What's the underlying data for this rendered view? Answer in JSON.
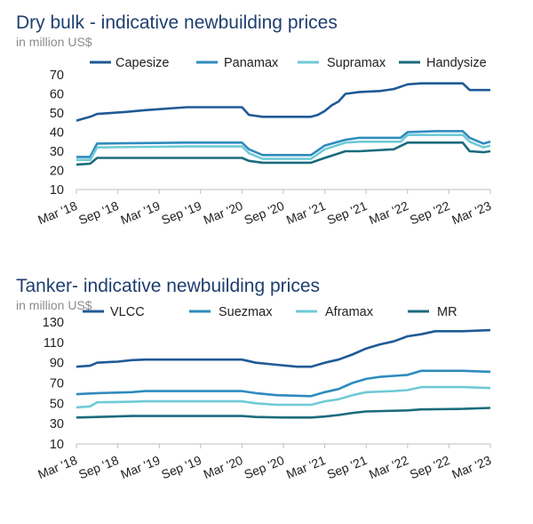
{
  "chart_data": [
    {
      "id": "dry",
      "type": "line",
      "title": "Dry bulk  - indicative  newbuilding  prices",
      "subtitle": "in million US$",
      "yticks": [
        10,
        20,
        30,
        40,
        50,
        60,
        70
      ],
      "ylim": [
        10,
        70
      ],
      "xticks": [
        "Mar '18",
        "Sep '18",
        "Mar '19",
        "Sep '19",
        "Mar '20",
        "Sep '20",
        "Mar '21",
        "Sep '21",
        "Mar '22",
        "Sep '22",
        "Mar '23"
      ],
      "xlim": [
        0,
        60
      ],
      "grid": false,
      "legend": "top",
      "series": [
        {
          "name": "Capesize",
          "color": "#1f5a96",
          "points": [
            [
              0,
              46
            ],
            [
              1,
              47
            ],
            [
              2,
              48
            ],
            [
              3,
              49.5
            ],
            [
              7,
              50.5
            ],
            [
              10,
              51.5
            ],
            [
              16,
              53
            ],
            [
              24,
              53
            ],
            [
              25,
              49
            ],
            [
              27,
              48
            ],
            [
              34,
              48
            ],
            [
              35,
              49
            ],
            [
              36,
              51
            ],
            [
              37,
              54
            ],
            [
              38,
              56
            ],
            [
              39,
              60
            ],
            [
              41,
              61
            ],
            [
              44,
              61.5
            ],
            [
              46,
              62.5
            ],
            [
              48,
              65
            ],
            [
              50,
              65.5
            ],
            [
              56,
              65.5
            ],
            [
              57,
              62
            ],
            [
              59,
              62
            ],
            [
              60,
              62
            ]
          ]
        },
        {
          "name": "Panamax",
          "color": "#2e8bbd",
          "points": [
            [
              0,
              27
            ],
            [
              2,
              27
            ],
            [
              3,
              34
            ],
            [
              16,
              34.5
            ],
            [
              24,
              34.5
            ],
            [
              25,
              31
            ],
            [
              27,
              28
            ],
            [
              34,
              28
            ],
            [
              36,
              33
            ],
            [
              39,
              36
            ],
            [
              41,
              37
            ],
            [
              47,
              37
            ],
            [
              48,
              40
            ],
            [
              52,
              40.5
            ],
            [
              56,
              40.5
            ],
            [
              57,
              37
            ],
            [
              59,
              34
            ],
            [
              60,
              35
            ]
          ]
        },
        {
          "name": "Supramax",
          "color": "#6fcad6",
          "points": [
            [
              0,
              25.5
            ],
            [
              2,
              25.5
            ],
            [
              3,
              32
            ],
            [
              16,
              32.5
            ],
            [
              24,
              32.5
            ],
            [
              25,
              29
            ],
            [
              27,
              26
            ],
            [
              34,
              26
            ],
            [
              36,
              31
            ],
            [
              39,
              34.5
            ],
            [
              41,
              35
            ],
            [
              47,
              35
            ],
            [
              48,
              38.5
            ],
            [
              52,
              38.5
            ],
            [
              56,
              38.5
            ],
            [
              57,
              35
            ],
            [
              59,
              32
            ],
            [
              60,
              33
            ]
          ]
        },
        {
          "name": "Handysize",
          "color": "#1b6b7d",
          "points": [
            [
              0,
              23
            ],
            [
              2,
              23.5
            ],
            [
              3,
              26.5
            ],
            [
              16,
              26.5
            ],
            [
              24,
              26.5
            ],
            [
              25,
              25
            ],
            [
              27,
              24
            ],
            [
              34,
              24
            ],
            [
              36,
              26.5
            ],
            [
              39,
              30
            ],
            [
              41,
              30
            ],
            [
              46,
              31
            ],
            [
              48,
              34.5
            ],
            [
              52,
              34.5
            ],
            [
              56,
              34.5
            ],
            [
              57,
              30
            ],
            [
              59,
              29.5
            ],
            [
              60,
              30
            ]
          ]
        }
      ]
    },
    {
      "id": "tanker",
      "type": "line",
      "title": "Tanker- indicative newbuilding  prices",
      "subtitle": "in million US$",
      "yticks": [
        10,
        30,
        50,
        70,
        90,
        110,
        130
      ],
      "ylim": [
        10,
        130
      ],
      "xticks": [
        "Mar '18",
        "Sep '18",
        "Mar '19",
        "Sep '19",
        "Mar '20",
        "Sep '20",
        "Mar '21",
        "Sep '21",
        "Mar '22",
        "Sep '22",
        "Mar '23"
      ],
      "xlim": [
        0,
        60
      ],
      "grid": false,
      "legend": "top",
      "series": [
        {
          "name": "VLCC",
          "color": "#1f5a96",
          "points": [
            [
              0,
              86
            ],
            [
              2,
              87
            ],
            [
              3,
              90
            ],
            [
              6,
              91
            ],
            [
              8,
              92.5
            ],
            [
              10,
              93
            ],
            [
              24,
              93
            ],
            [
              26,
              90
            ],
            [
              29,
              88
            ],
            [
              32,
              86
            ],
            [
              34,
              86
            ],
            [
              36,
              90
            ],
            [
              38,
              93
            ],
            [
              40,
              98
            ],
            [
              42,
              104
            ],
            [
              44,
              108
            ],
            [
              46,
              111
            ],
            [
              48,
              116
            ],
            [
              50,
              118
            ],
            [
              52,
              121
            ],
            [
              56,
              121
            ],
            [
              60,
              122
            ]
          ]
        },
        {
          "name": "Suezmax",
          "color": "#2e8bbd",
          "points": [
            [
              0,
              59
            ],
            [
              3,
              60
            ],
            [
              8,
              61
            ],
            [
              10,
              62
            ],
            [
              24,
              62
            ],
            [
              26,
              60
            ],
            [
              29,
              58
            ],
            [
              34,
              57
            ],
            [
              36,
              61
            ],
            [
              38,
              64
            ],
            [
              40,
              70
            ],
            [
              42,
              74
            ],
            [
              44,
              76
            ],
            [
              46,
              77
            ],
            [
              48,
              78
            ],
            [
              50,
              82
            ],
            [
              56,
              82
            ],
            [
              60,
              81
            ]
          ]
        },
        {
          "name": "Aframax",
          "color": "#6fcad6",
          "points": [
            [
              0,
              46
            ],
            [
              2,
              47
            ],
            [
              3,
              51
            ],
            [
              8,
              51.5
            ],
            [
              10,
              52
            ],
            [
              24,
              52
            ],
            [
              26,
              50
            ],
            [
              29,
              48.5
            ],
            [
              34,
              48.5
            ],
            [
              36,
              52
            ],
            [
              38,
              54
            ],
            [
              40,
              58
            ],
            [
              42,
              61
            ],
            [
              46,
              62
            ],
            [
              48,
              63
            ],
            [
              50,
              66
            ],
            [
              56,
              66
            ],
            [
              60,
              65
            ]
          ]
        },
        {
          "name": "MR",
          "color": "#1b6b7d",
          "points": [
            [
              0,
              36
            ],
            [
              3,
              36.5
            ],
            [
              8,
              37.5
            ],
            [
              24,
              37.5
            ],
            [
              26,
              36.5
            ],
            [
              30,
              36
            ],
            [
              34,
              36
            ],
            [
              36,
              37
            ],
            [
              38,
              38.5
            ],
            [
              40,
              40.5
            ],
            [
              42,
              42
            ],
            [
              48,
              43
            ],
            [
              50,
              44
            ],
            [
              56,
              44.5
            ],
            [
              60,
              45.5
            ]
          ]
        }
      ]
    }
  ]
}
